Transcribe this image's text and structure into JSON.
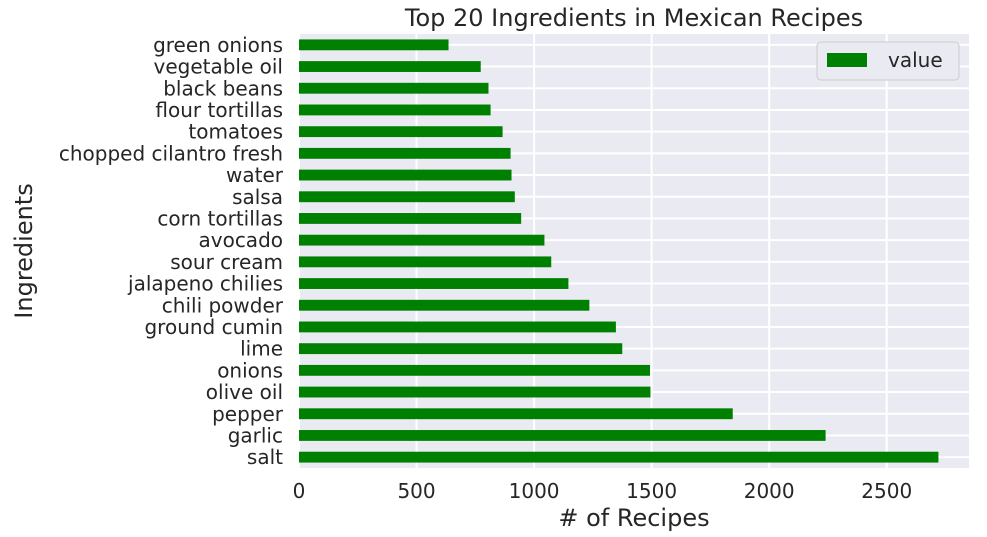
{
  "chart_data": {
    "type": "bar",
    "orientation": "horizontal",
    "title": "Top 20 Ingredients in Mexican Recipes",
    "xlabel": "# of Recipes",
    "ylabel": "Ingredients",
    "xlim": [
      0,
      2850
    ],
    "xticks": [
      0,
      500,
      1000,
      1500,
      2000,
      2500
    ],
    "grid": true,
    "legend": {
      "placement": "top-right",
      "entries": [
        "value"
      ]
    },
    "bar_color": "#008000",
    "background_color": "#eaeaf2",
    "grid_color": "#ffffff",
    "categories": [
      "salt",
      "garlic",
      "pepper",
      "olive oil",
      "onions",
      "lime",
      "ground cumin",
      "chili powder",
      "jalapeno chilies",
      "sour cream",
      "avocado",
      "corn tortillas",
      "salsa",
      "water",
      "chopped cilantro fresh",
      "tomatoes",
      "flour tortillas",
      "black beans",
      "vegetable oil",
      "green onions"
    ],
    "series": [
      {
        "name": "value",
        "values": [
          2720,
          2240,
          1845,
          1495,
          1493,
          1375,
          1348,
          1235,
          1146,
          1073,
          1044,
          945,
          918,
          904,
          900,
          866,
          815,
          806,
          773,
          636
        ]
      }
    ]
  }
}
